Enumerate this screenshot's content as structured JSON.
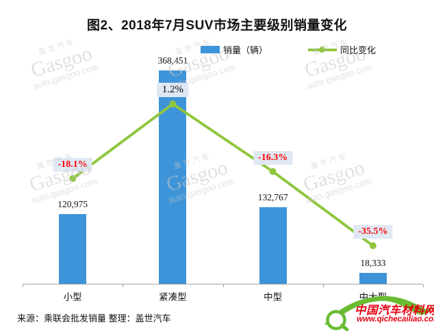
{
  "title": "图2、2018年7月SUV市场主要级别销量变化",
  "legend": {
    "sales_label": "销量（辆）",
    "yoy_label": "同比变化"
  },
  "chart_data": {
    "type": "combo",
    "title": "图2、2018年7月SUV市场主要级别销量变化",
    "categories": [
      "小型",
      "紧凑型",
      "中型",
      "中大型"
    ],
    "series": [
      {
        "name": "销量（辆）",
        "type": "bar",
        "values": [
          120975,
          368451,
          132767,
          18333
        ],
        "value_labels": [
          "120,975",
          "368,451",
          "132,767",
          "18,333"
        ],
        "color": "#3e94d8"
      },
      {
        "name": "同比变化",
        "type": "line",
        "values": [
          -18.1,
          1.2,
          -16.3,
          -35.5
        ],
        "value_labels": [
          "-18.1%",
          "1.2%",
          "-16.3%",
          "-35.5%"
        ],
        "color": "#8fc63e"
      }
    ],
    "legend_position": "top-center",
    "grid": false,
    "axis_color": "#a3a3a3",
    "label_box_color": "#dfe8f3",
    "negative_label_color": "#ff0000",
    "positive_label_color": "#000000"
  },
  "watermark": {
    "brand_cn": "盖世汽车",
    "brand_en": "Gasgoo",
    "site": "auto.gasgoo.com"
  },
  "footer": {
    "source_text": "来源：乘联会批发销量  整理：盖世汽车"
  },
  "logo": {
    "site_name": "中国汽车材料网",
    "site_url": "www.qichecailiao.com",
    "green": "#68bc31",
    "red": "#e60012"
  }
}
